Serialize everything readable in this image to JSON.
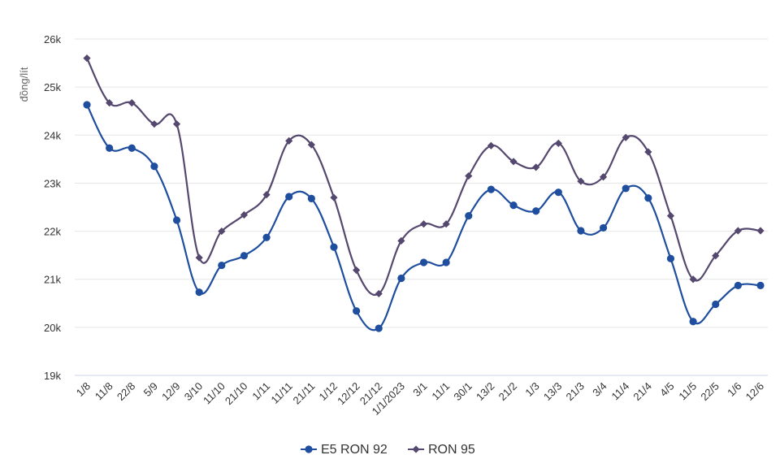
{
  "chart_data": {
    "type": "line",
    "ylabel": "đồng/lít",
    "yticks": [
      "19k",
      "20k",
      "21k",
      "22k",
      "23k",
      "24k",
      "25k",
      "26k"
    ],
    "ylim": [
      19000,
      26000
    ],
    "categories": [
      "1/8",
      "11/8",
      "22/8",
      "5/9",
      "12/9",
      "3/10",
      "11/10",
      "21/10",
      "1/11",
      "11/11",
      "21/11",
      "1/12",
      "12/12",
      "21/12",
      "1/1/2023",
      "3/1",
      "11/1",
      "30/1",
      "13/2",
      "21/2",
      "1/3",
      "13/3",
      "21/3",
      "3/4",
      "11/4",
      "21/4",
      "4/5",
      "11/5",
      "22/5",
      "1/6",
      "12/6"
    ],
    "series": [
      {
        "name": "E5 RON 92",
        "color": "#1f4e9e",
        "marker": "circle",
        "values": [
          24630,
          23730,
          23730,
          23350,
          22230,
          20730,
          21290,
          21490,
          21870,
          22720,
          22680,
          21670,
          20340,
          19980,
          21020,
          21350,
          21350,
          22320,
          22870,
          22540,
          22420,
          22810,
          22010,
          22070,
          22890,
          22690,
          21430,
          20120,
          20480,
          20870,
          20870
        ]
      },
      {
        "name": "RON 95",
        "color": "#55486e",
        "marker": "diamond",
        "values": [
          25600,
          24670,
          24670,
          24230,
          24230,
          21450,
          22000,
          22340,
          22760,
          23880,
          23800,
          22700,
          21190,
          20700,
          21800,
          22150,
          22150,
          23150,
          23780,
          23450,
          23330,
          23830,
          23040,
          23130,
          23950,
          23650,
          22320,
          21000,
          21490,
          22010,
          22010
        ]
      }
    ],
    "grid": true,
    "legend": "bottom-center"
  }
}
